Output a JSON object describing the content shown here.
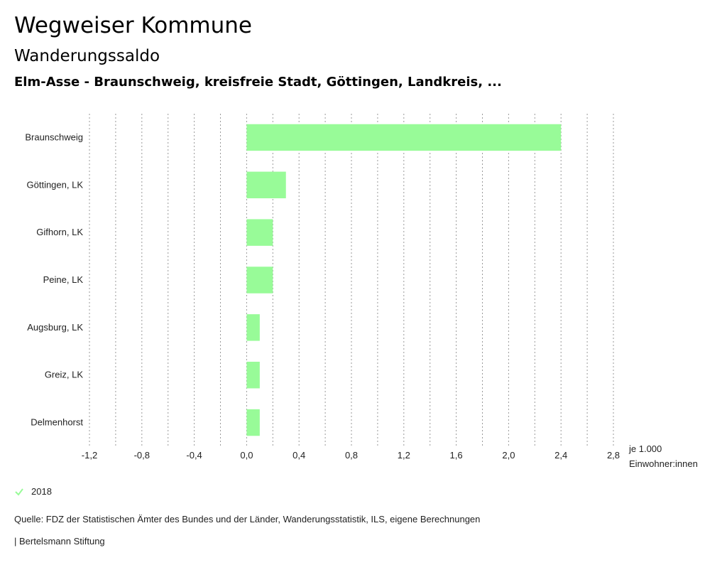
{
  "header": {
    "title": "Wegweiser Kommune",
    "subtitle": "Wanderungssaldo",
    "region": "Elm-Asse - Braunschweig, kreisfreie Stadt, Göttingen, Landkreis, ..."
  },
  "chart_data": {
    "type": "bar",
    "orientation": "horizontal",
    "categories": [
      "Braunschweig",
      "Göttingen, LK",
      "Gifhorn, LK",
      "Peine, LK",
      "Augsburg, LK",
      "Greiz, LK",
      "Delmenhorst"
    ],
    "series": [
      {
        "name": "2018",
        "values": [
          2.4,
          0.3,
          0.2,
          0.2,
          0.1,
          0.1,
          0.1
        ],
        "color": "#98fb98"
      }
    ],
    "xlim": [
      -1.2,
      2.8
    ],
    "xticks": [
      "-1,2",
      "-0,8",
      "-0,4",
      "0,0",
      "0,4",
      "0,8",
      "1,2",
      "1,6",
      "2,0",
      "2,4",
      "2,8"
    ],
    "xtick_values": [
      -1.2,
      -0.8,
      -0.4,
      0.0,
      0.4,
      0.8,
      1.2,
      1.6,
      2.0,
      2.4,
      2.8
    ],
    "grid": true,
    "unit_line1": "je 1.000",
    "unit_line2": "Einwohner:innen"
  },
  "legend": {
    "label": "2018",
    "color": "#98fb98"
  },
  "footer": {
    "source": "Quelle: FDZ der Statistischen Ämter des Bundes und der Länder, Wanderungsstatistik, ILS, eigene Berechnungen",
    "credit": "| Bertelsmann Stiftung"
  }
}
